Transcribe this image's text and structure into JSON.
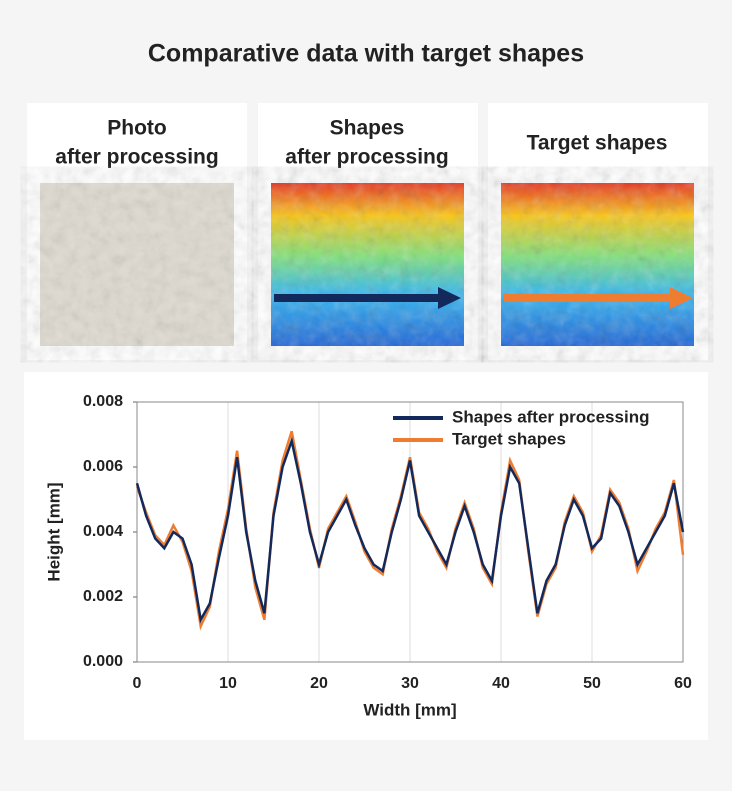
{
  "header": {
    "title": "Comparative data with target shapes"
  },
  "panels": [
    {
      "title": [
        "Photo",
        "after processing"
      ]
    },
    {
      "title": [
        "Shapes",
        "after processing"
      ]
    },
    {
      "title": [
        "Target shapes"
      ]
    }
  ],
  "chart_data": {
    "type": "line",
    "x_label": "Width [mm]",
    "y_label": "Height [mm]",
    "x": [
      0,
      1,
      2,
      3,
      4,
      5,
      6,
      7,
      8,
      9,
      10,
      11,
      12,
      13,
      14,
      15,
      16,
      17,
      18,
      19,
      20,
      21,
      22,
      23,
      24,
      25,
      26,
      27,
      28,
      29,
      30,
      31,
      32,
      33,
      34,
      35,
      36,
      37,
      38,
      39,
      40,
      41,
      42,
      43,
      44,
      45,
      46,
      47,
      48,
      49,
      50,
      51,
      52,
      53,
      54,
      55,
      56,
      57,
      58,
      59,
      60
    ],
    "series": [
      {
        "name": "Shapes after processing",
        "color": "#13295b",
        "values": [
          0.0055,
          0.0045,
          0.0038,
          0.0035,
          0.004,
          0.0038,
          0.003,
          0.0013,
          0.0018,
          0.0032,
          0.0045,
          0.0063,
          0.004,
          0.0025,
          0.0015,
          0.0045,
          0.006,
          0.0068,
          0.0055,
          0.004,
          0.003,
          0.004,
          0.0045,
          0.005,
          0.0042,
          0.0035,
          0.003,
          0.0028,
          0.004,
          0.005,
          0.0062,
          0.0045,
          0.004,
          0.0035,
          0.003,
          0.004,
          0.0048,
          0.004,
          0.003,
          0.0025,
          0.0045,
          0.006,
          0.0055,
          0.0035,
          0.0015,
          0.0025,
          0.003,
          0.0042,
          0.005,
          0.0045,
          0.0035,
          0.0038,
          0.0052,
          0.0048,
          0.004,
          0.003,
          0.0035,
          0.004,
          0.0045,
          0.0055,
          0.004
        ]
      },
      {
        "name": "Target shapes",
        "color": "#ef7d31",
        "values": [
          0.0054,
          0.0046,
          0.0039,
          0.0036,
          0.0042,
          0.0037,
          0.0028,
          0.0011,
          0.0017,
          0.0034,
          0.0047,
          0.0065,
          0.0041,
          0.0023,
          0.0013,
          0.0046,
          0.0062,
          0.0071,
          0.0056,
          0.0041,
          0.0029,
          0.0041,
          0.0046,
          0.0051,
          0.0043,
          0.0034,
          0.0029,
          0.0027,
          0.0041,
          0.0051,
          0.0063,
          0.0046,
          0.0041,
          0.0034,
          0.0029,
          0.0041,
          0.0049,
          0.0041,
          0.0029,
          0.0024,
          0.0046,
          0.0062,
          0.0056,
          0.0034,
          0.0014,
          0.0024,
          0.0029,
          0.0043,
          0.0051,
          0.0046,
          0.0034,
          0.0039,
          0.0053,
          0.0049,
          0.0041,
          0.0028,
          0.0034,
          0.0041,
          0.0046,
          0.0056,
          0.0033
        ]
      }
    ],
    "xlim": [
      0,
      60
    ],
    "xticks": [
      0,
      10,
      20,
      30,
      40,
      50,
      60
    ],
    "ylim": [
      0,
      0.008
    ],
    "yticks": [
      {
        "value": 0,
        "label": "0.000"
      },
      {
        "value": 0.002,
        "label": "0.002"
      },
      {
        "value": 0.004,
        "label": "0.004"
      },
      {
        "value": 0.006,
        "label": "0.006"
      },
      {
        "value": 0.008,
        "label": "0.008"
      }
    ],
    "grid": true,
    "legend": "upper right"
  }
}
